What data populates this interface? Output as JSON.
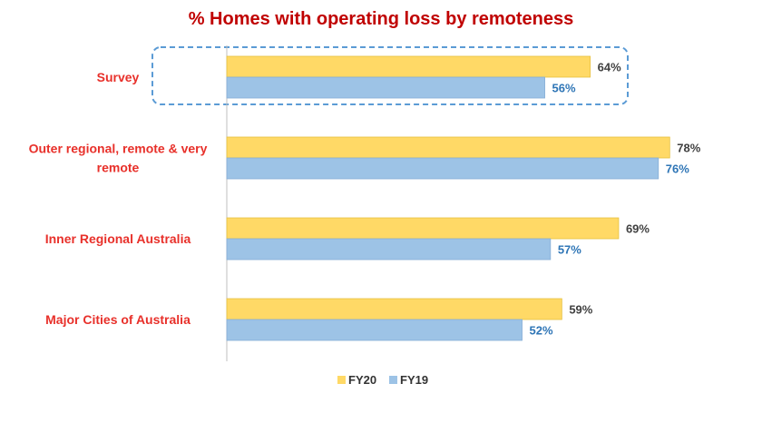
{
  "chart_data": {
    "type": "bar",
    "orientation": "horizontal",
    "title": "% Homes with operating loss by remoteness",
    "categories": [
      "Survey",
      "Outer regional, remote & very remote",
      "Inner Regional Australia",
      "Major Cities of Australia"
    ],
    "category_label_lines": [
      [
        "Survey"
      ],
      [
        "Outer regional, remote & very",
        "remote"
      ],
      [
        "Inner Regional Australia"
      ],
      [
        "Major Cities of Australia"
      ]
    ],
    "series": [
      {
        "name": "FY20",
        "values": [
          64,
          78,
          69,
          59
        ],
        "labels": [
          "64%",
          "78%",
          "69%",
          "59%"
        ],
        "color": "#ffd966"
      },
      {
        "name": "FY19",
        "values": [
          56,
          76,
          57,
          52
        ],
        "labels": [
          "56%",
          "76%",
          "57%",
          "52%"
        ],
        "color": "#9dc3e6"
      }
    ],
    "highlighted_category": "Survey",
    "xlim": [
      0,
      100
    ],
    "grid": false,
    "legend": "bottom"
  }
}
